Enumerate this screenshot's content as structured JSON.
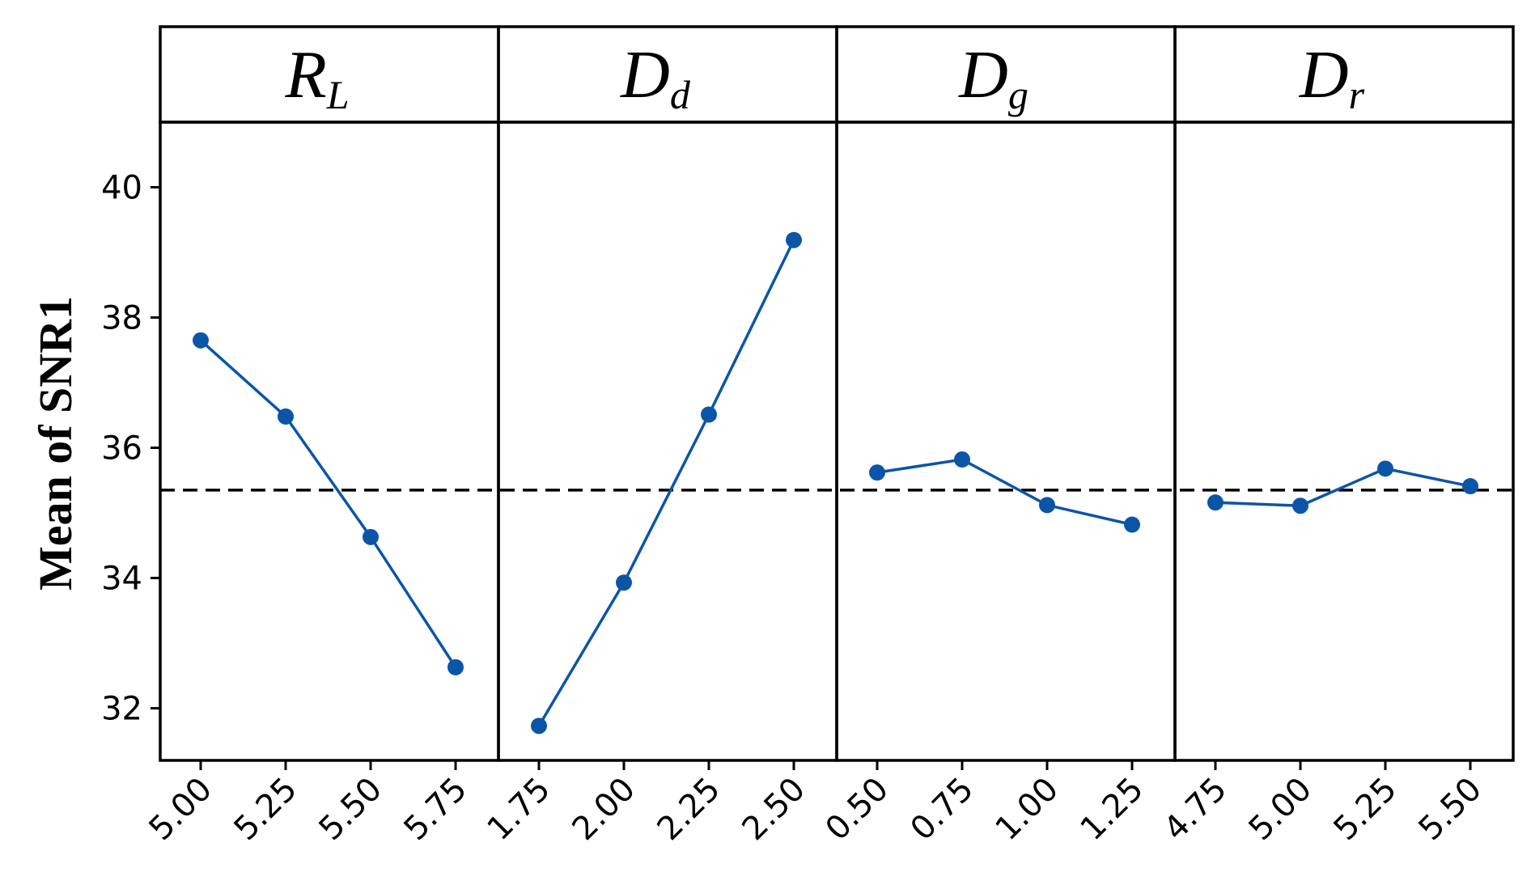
{
  "chart_data": {
    "type": "line",
    "ylabel": "Mean of SNR1",
    "ylim": [
      31.2,
      41.0
    ],
    "yticks": [
      "32",
      "34",
      "36",
      "38",
      "40"
    ],
    "reference_line": 35.35,
    "color": "#0b55a8",
    "panels": [
      {
        "name": "R",
        "subscript": "L",
        "x": [
          "5.00",
          "5.25",
          "5.50",
          "5.75"
        ],
        "values": [
          37.65,
          36.48,
          34.63,
          32.63
        ]
      },
      {
        "name": "D",
        "subscript": "d",
        "x": [
          "1.75",
          "2.00",
          "2.25",
          "2.50"
        ],
        "values": [
          31.73,
          33.93,
          36.51,
          39.19
        ]
      },
      {
        "name": "D",
        "subscript": "g",
        "x": [
          "0.50",
          "0.75",
          "1.00",
          "1.25"
        ],
        "values": [
          35.62,
          35.82,
          35.12,
          34.82
        ]
      },
      {
        "name": "D",
        "subscript": "r",
        "x": [
          "4.75",
          "5.00",
          "5.25",
          "5.50"
        ],
        "values": [
          35.16,
          35.11,
          35.68,
          35.41
        ]
      }
    ]
  }
}
